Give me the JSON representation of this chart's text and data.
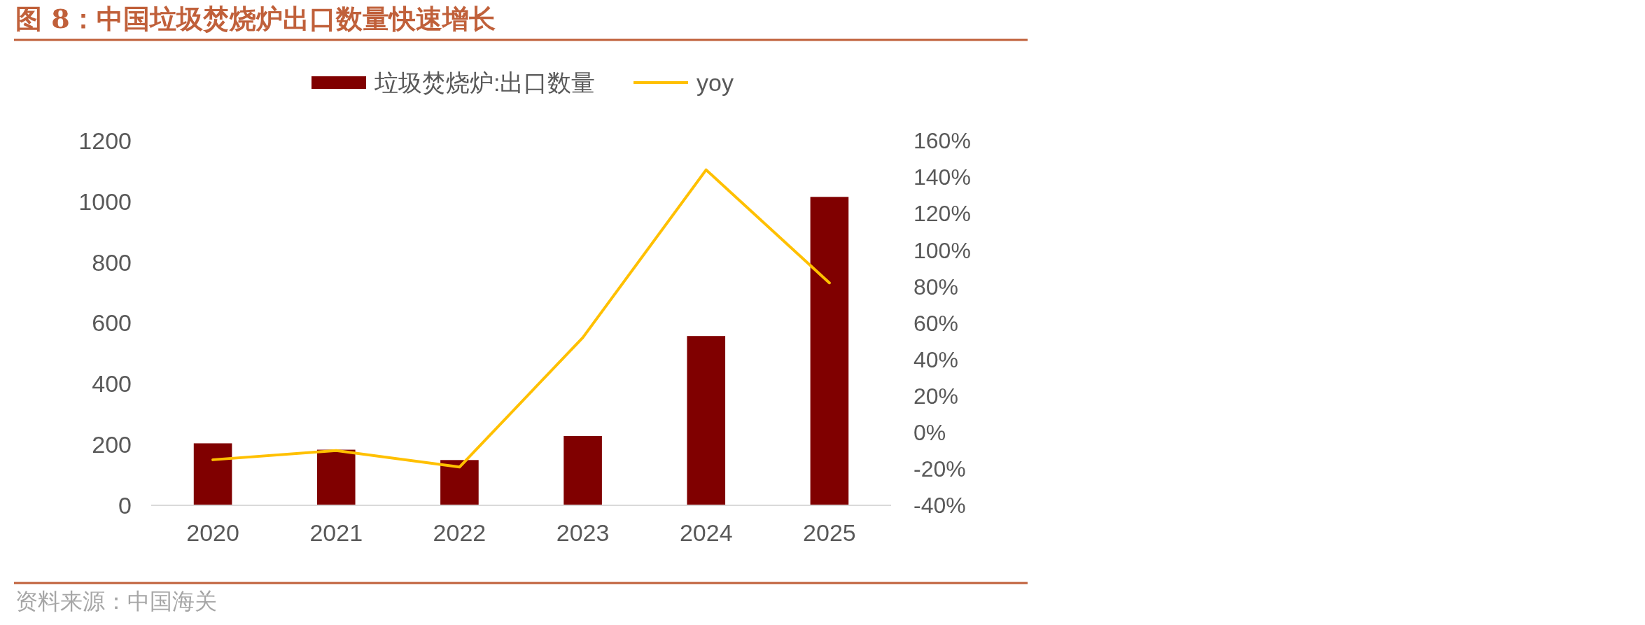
{
  "chart_data": {
    "type": "bar",
    "title": "图 8：中国垃圾焚烧炉出口数量快速增长",
    "categories": [
      "2020",
      "2021",
      "2022",
      "2023",
      "2024",
      "2025"
    ],
    "series": [
      {
        "name": "垃圾焚烧炉:出口数量",
        "color": "#800000",
        "values": [
          204,
          183,
          149,
          228,
          557,
          1015
        ]
      },
      {
        "name": "yoy",
        "type": "line",
        "axis": "y2",
        "color": "#ffc000",
        "values": [
          -15,
          -10,
          -19,
          52,
          144,
          82
        ]
      }
    ],
    "ylim": [
      0,
      1200
    ],
    "yticks": [
      0,
      200,
      400,
      600,
      800,
      1000,
      1200
    ],
    "y2lim": [
      -40,
      160
    ],
    "y2ticks": [
      {
        "value": -40,
        "label": "-40%"
      },
      {
        "value": -20,
        "label": "-20%"
      },
      {
        "value": 0,
        "label": "0%"
      },
      {
        "value": 20,
        "label": "20%"
      },
      {
        "value": 40,
        "label": "40%"
      },
      {
        "value": 60,
        "label": "60%"
      },
      {
        "value": 80,
        "label": "80%"
      },
      {
        "value": 100,
        "label": "100%"
      },
      {
        "value": 120,
        "label": "120%"
      },
      {
        "value": 140,
        "label": "140%"
      },
      {
        "value": 160,
        "label": "160%"
      }
    ],
    "legend": "top",
    "grid": false,
    "annotations": [
      "资料来源：中国海关"
    ]
  }
}
